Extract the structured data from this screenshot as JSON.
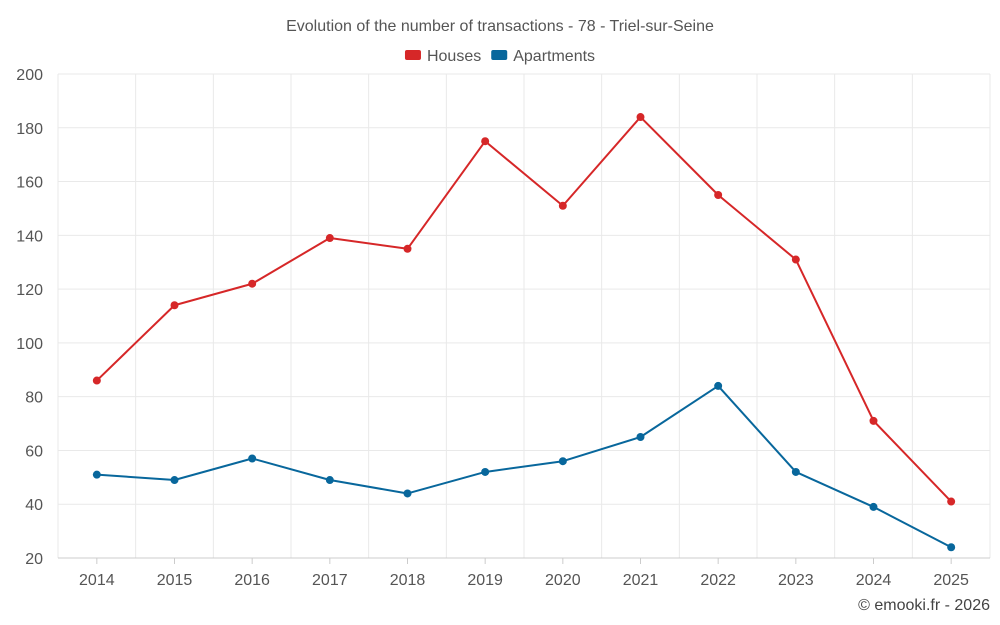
{
  "chart_data": {
    "type": "line",
    "title": "Evolution of the number of transactions - 78 - Triel-sur-Seine",
    "categories": [
      "2014",
      "2015",
      "2016",
      "2017",
      "2018",
      "2019",
      "2020",
      "2021",
      "2022",
      "2023",
      "2024",
      "2025"
    ],
    "series": [
      {
        "name": "Houses",
        "color": "#d62728",
        "values": [
          86,
          114,
          122,
          139,
          135,
          175,
          151,
          184,
          155,
          131,
          71,
          41
        ]
      },
      {
        "name": "Apartments",
        "color": "#08679c",
        "values": [
          51,
          49,
          57,
          49,
          44,
          52,
          56,
          65,
          84,
          52,
          39,
          24
        ]
      }
    ],
    "ylim": [
      20,
      200
    ],
    "yticks": [
      20,
      40,
      60,
      80,
      100,
      120,
      140,
      160,
      180,
      200
    ],
    "xlabel": "",
    "ylabel": "",
    "grid": true,
    "legend": "top-center"
  },
  "credit": "© emooki.fr - 2026"
}
